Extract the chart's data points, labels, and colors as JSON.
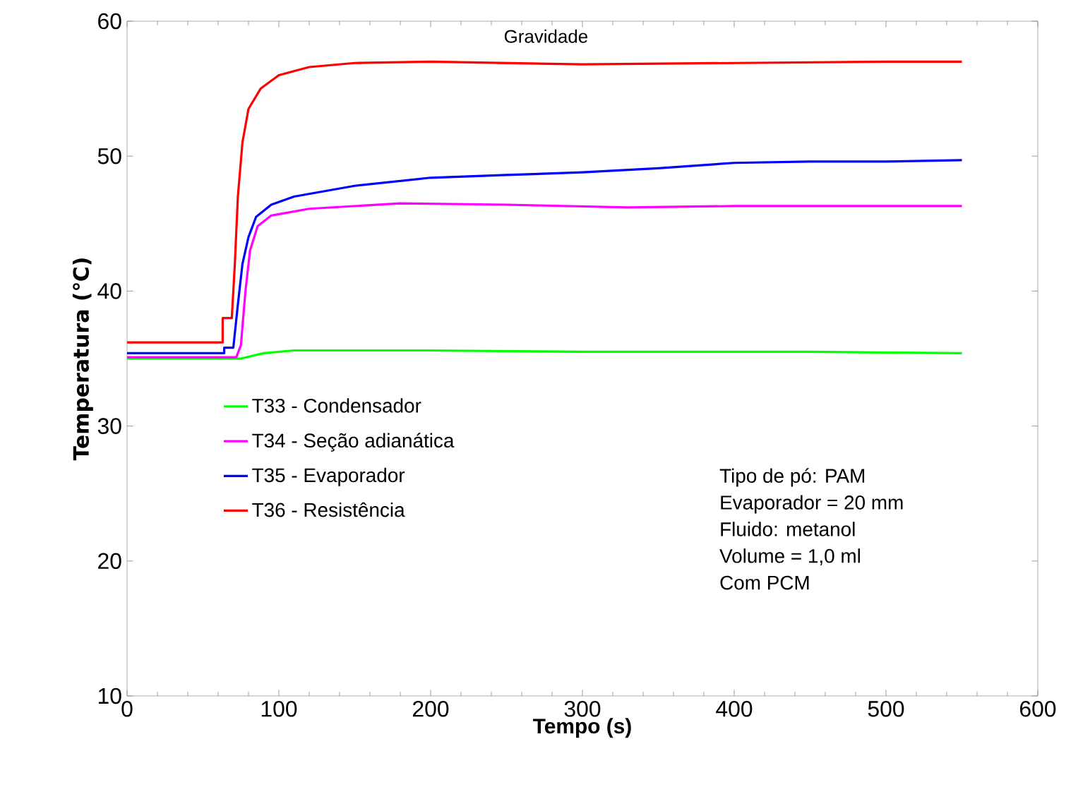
{
  "chart_data": {
    "type": "line",
    "xlabel": "Tempo (s)",
    "ylabel": "Temperatura (℃)",
    "annotations": [
      "Gravidade",
      "Tipo de pó: PAM",
      "Evaporador = 20 mm",
      "Fluido: metanol",
      "Volume = 1,0 ml",
      "Com PCM"
    ],
    "xlim": [
      0,
      600
    ],
    "ylim": [
      10,
      60
    ],
    "xticks": [
      0,
      100,
      200,
      300,
      400,
      500,
      600
    ],
    "yticks": [
      10,
      20,
      30,
      40,
      50,
      60
    ],
    "grid": false,
    "legend": "left",
    "marker": "none",
    "line_style": "solid",
    "series": [
      {
        "name": "T33 - Condensador",
        "color": "#00ff00",
        "x": [
          0,
          75,
          90,
          110,
          200,
          300,
          450,
          550
        ],
        "values": [
          35.0,
          35.0,
          35.4,
          35.6,
          35.6,
          35.5,
          35.5,
          35.4
        ]
      },
      {
        "name": "T34 - Seção adianática",
        "color": "#ff00ff",
        "x": [
          0,
          72,
          75,
          78,
          81,
          86,
          95,
          120,
          180,
          250,
          330,
          400,
          550
        ],
        "values": [
          35.1,
          35.1,
          36,
          40,
          43,
          44.8,
          45.6,
          46.1,
          46.5,
          46.4,
          46.2,
          46.3,
          46.3
        ]
      },
      {
        "name": "T35 - Evaporador",
        "color": "#0000ff",
        "x": [
          0,
          64,
          64,
          70,
          73,
          76,
          80,
          85,
          95,
          110,
          150,
          200,
          250,
          300,
          350,
          400,
          450,
          500,
          550
        ],
        "values": [
          35.4,
          35.4,
          35.8,
          35.8,
          39,
          42,
          44,
          45.5,
          46.4,
          47,
          47.8,
          48.4,
          48.6,
          48.8,
          49.1,
          49.5,
          49.6,
          49.6,
          49.7
        ]
      },
      {
        "name": "T36 - Resistência",
        "color": "#ff0000",
        "x": [
          0,
          63,
          63,
          69,
          71,
          73,
          76,
          80,
          88,
          100,
          120,
          150,
          200,
          300,
          400,
          500,
          550
        ],
        "values": [
          36.2,
          36.2,
          38,
          38,
          42,
          47,
          51,
          53.5,
          55,
          56,
          56.6,
          56.9,
          57,
          56.8,
          56.9,
          57,
          57
        ]
      }
    ]
  }
}
